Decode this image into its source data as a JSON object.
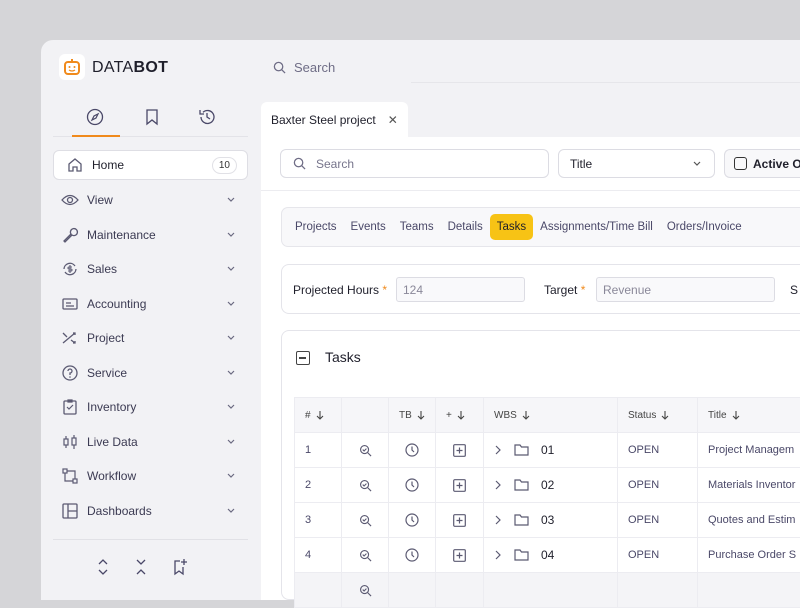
{
  "brand": {
    "name_light": "DATA",
    "name_bold": "BOT",
    "accent": "#f08a1c"
  },
  "topbar": {
    "search_placeholder": "Search"
  },
  "sidebar": {
    "tabs": [
      {
        "icon": "compass-icon",
        "active": true
      },
      {
        "icon": "bookmark-icon"
      },
      {
        "icon": "history-icon"
      }
    ],
    "items": [
      {
        "label": "Home",
        "icon": "home-icon",
        "badge": "10"
      },
      {
        "label": "View",
        "icon": "eye-icon"
      },
      {
        "label": "Maintenance",
        "icon": "wrench-icon"
      },
      {
        "label": "Sales",
        "icon": "dollar-cycle-icon"
      },
      {
        "label": "Accounting",
        "icon": "invoice-icon"
      },
      {
        "label": "Project",
        "icon": "shuffle-icon"
      },
      {
        "label": "Service",
        "icon": "help-circle-icon"
      },
      {
        "label": "Inventory",
        "icon": "clipboard-icon"
      },
      {
        "label": "Live Data",
        "icon": "candlestick-icon"
      },
      {
        "label": "Workflow",
        "icon": "workflow-icon"
      },
      {
        "label": "Dashboards",
        "icon": "dashboard-icon"
      }
    ]
  },
  "page_tab": {
    "title": "Baxter Steel project"
  },
  "filters": {
    "search_placeholder": "Search",
    "select_value": "Title",
    "checkbox_label": "Active Or"
  },
  "tabs": [
    "Projects",
    "Events",
    "Teams",
    "Details",
    "Tasks",
    "Assignments/Time Bill",
    "Orders/Invoice"
  ],
  "active_tab": "Tasks",
  "form": {
    "projected_hours_label": "Projected Hours",
    "projected_hours_value": "124",
    "target_label": "Target",
    "target_placeholder": "Revenue",
    "next_label": "S"
  },
  "tasks": {
    "title": "Tasks",
    "columns": [
      "#",
      "",
      "TB",
      "+",
      "WBS",
      "Status",
      "Title"
    ],
    "rows": [
      {
        "num": "1",
        "wbs": "01",
        "status": "OPEN",
        "title": "Project Managem"
      },
      {
        "num": "2",
        "wbs": "02",
        "status": "OPEN",
        "title": "Materials Inventor"
      },
      {
        "num": "3",
        "wbs": "03",
        "status": "OPEN",
        "title": "Quotes and Estim"
      },
      {
        "num": "4",
        "wbs": "04",
        "status": "OPEN",
        "title": "Purchase Order S"
      }
    ]
  }
}
